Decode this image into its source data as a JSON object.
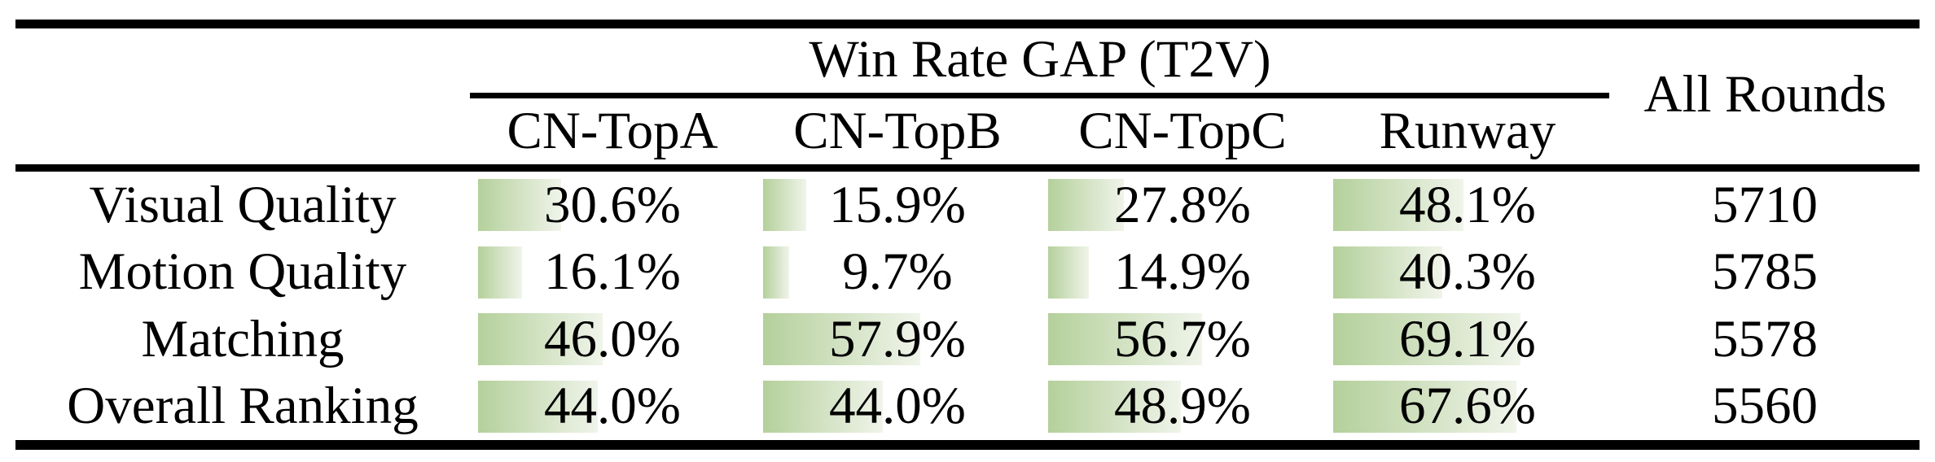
{
  "table": {
    "header": {
      "group_title": "Win Rate GAP (T2V)",
      "all_rounds_label": "All Rounds",
      "columns": [
        "CN-TopA",
        "CN-TopB",
        "CN-TopC",
        "Runway"
      ]
    },
    "rows": [
      {
        "label": "Visual Quality",
        "values": [
          "30.6%",
          "15.9%",
          "27.8%",
          "48.1%"
        ],
        "all_rounds": "5710"
      },
      {
        "label": "Motion Quality",
        "values": [
          "16.1%",
          "9.7%",
          "14.9%",
          "40.3%"
        ],
        "all_rounds": "5785"
      },
      {
        "label": "Matching",
        "values": [
          "46.0%",
          "57.9%",
          "56.7%",
          "69.1%"
        ],
        "all_rounds": "5578"
      },
      {
        "label": "Overall Ranking",
        "values": [
          "44.0%",
          "44.0%",
          "48.9%",
          "67.6%"
        ],
        "all_rounds": "5560"
      }
    ],
    "colors": {
      "bar_gradient_start": "#b4d09b",
      "bar_gradient_end": "#f0f4ea",
      "rule": "#000000",
      "background": "#ffffff",
      "text": "#000000"
    }
  },
  "chart_data": {
    "type": "table",
    "title": "Win Rate GAP (T2V)",
    "columns": [
      "CN-TopA",
      "CN-TopB",
      "CN-TopC",
      "Runway",
      "All Rounds"
    ],
    "row_labels": [
      "Visual Quality",
      "Motion Quality",
      "Matching",
      "Overall Ranking"
    ],
    "series": [
      {
        "name": "CN-TopA",
        "values": [
          30.6,
          16.1,
          46.0,
          44.0
        ]
      },
      {
        "name": "CN-TopB",
        "values": [
          15.9,
          9.7,
          57.9,
          44.0
        ]
      },
      {
        "name": "CN-TopC",
        "values": [
          27.8,
          14.9,
          56.7,
          48.9
        ]
      },
      {
        "name": "Runway",
        "values": [
          48.1,
          40.3,
          69.1,
          67.6
        ]
      }
    ],
    "all_rounds": [
      5710,
      5785,
      5578,
      5560
    ],
    "unit": "%",
    "bar_scale_max": 100,
    "legend_position": "none",
    "grid": false
  }
}
